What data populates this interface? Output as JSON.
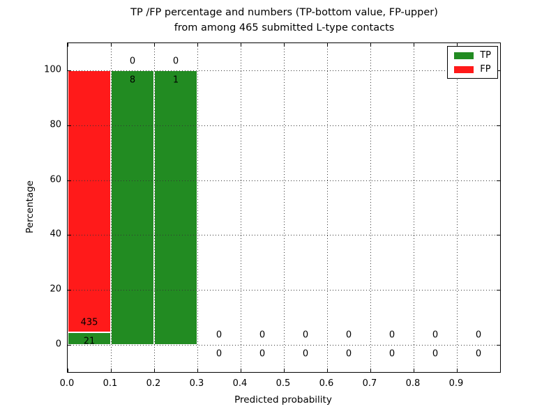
{
  "figure": {
    "title_line1": "TP /FP percentage and numbers (TP-bottom value, FP-upper)",
    "title_line2": "from among 465 submitted L-type contacts",
    "xlabel": "Predicted probability",
    "ylabel": "Percentage"
  },
  "colors": {
    "tp": "#228B22",
    "fp": "#FF1A1A",
    "grid": "#333333",
    "axis": "#000000",
    "background": "#FFFFFF"
  },
  "legend": {
    "position": "upper right",
    "items": [
      {
        "label": "TP",
        "color": "#228B22"
      },
      {
        "label": "FP",
        "color": "#FF1A1A"
      }
    ]
  },
  "chart_data": {
    "type": "bar",
    "stacked": true,
    "title": "TP /FP percentage and numbers (TP-bottom value, FP-upper) from among 465 submitted L-type contacts",
    "xlabel": "Predicted probability",
    "ylabel": "Percentage",
    "xlim": [
      0.0,
      1.0
    ],
    "ylim": [
      -10,
      110
    ],
    "xtick_values": [
      0.0,
      0.1,
      0.2,
      0.3,
      0.4,
      0.5,
      0.6,
      0.7,
      0.8,
      0.9
    ],
    "xtick_labels": [
      "0.0",
      "0.1",
      "0.2",
      "0.3",
      "0.4",
      "0.5",
      "0.6",
      "0.7",
      "0.8",
      "0.9"
    ],
    "ytick_values": [
      0,
      20,
      40,
      60,
      80,
      100
    ],
    "ytick_labels": [
      "0",
      "20",
      "40",
      "60",
      "80",
      "100"
    ],
    "grid_x": [
      0.1,
      0.2,
      0.3,
      0.4,
      0.5,
      0.6,
      0.7,
      0.8,
      0.9
    ],
    "grid_y": [
      0,
      20,
      40,
      60,
      80,
      100
    ],
    "grid_style": "dotted",
    "legend_position": "upper right",
    "series": [
      {
        "name": "TP",
        "color": "#228B22"
      },
      {
        "name": "FP",
        "color": "#FF1A1A"
      }
    ],
    "label_offset_pct": 3.5,
    "bins": [
      {
        "x0": 0.0,
        "x1": 0.1,
        "tp_count": 21,
        "fp_count": 435,
        "tp_pct": 4.6,
        "fp_pct": 95.4
      },
      {
        "x0": 0.1,
        "x1": 0.2,
        "tp_count": 8,
        "fp_count": 0,
        "tp_pct": 100,
        "fp_pct": 0
      },
      {
        "x0": 0.2,
        "x1": 0.3,
        "tp_count": 1,
        "fp_count": 0,
        "tp_pct": 100,
        "fp_pct": 0
      },
      {
        "x0": 0.3,
        "x1": 0.4,
        "tp_count": 0,
        "fp_count": 0,
        "tp_pct": 0,
        "fp_pct": 0
      },
      {
        "x0": 0.4,
        "x1": 0.5,
        "tp_count": 0,
        "fp_count": 0,
        "tp_pct": 0,
        "fp_pct": 0
      },
      {
        "x0": 0.5,
        "x1": 0.6,
        "tp_count": 0,
        "fp_count": 0,
        "tp_pct": 0,
        "fp_pct": 0
      },
      {
        "x0": 0.6,
        "x1": 0.7,
        "tp_count": 0,
        "fp_count": 0,
        "tp_pct": 0,
        "fp_pct": 0
      },
      {
        "x0": 0.7,
        "x1": 0.8,
        "tp_count": 0,
        "fp_count": 0,
        "tp_pct": 0,
        "fp_pct": 0
      },
      {
        "x0": 0.8,
        "x1": 0.9,
        "tp_count": 0,
        "fp_count": 0,
        "tp_pct": 0,
        "fp_pct": 0
      },
      {
        "x0": 0.9,
        "x1": 1.0,
        "tp_count": 0,
        "fp_count": 0,
        "tp_pct": 0,
        "fp_pct": 0
      }
    ]
  }
}
